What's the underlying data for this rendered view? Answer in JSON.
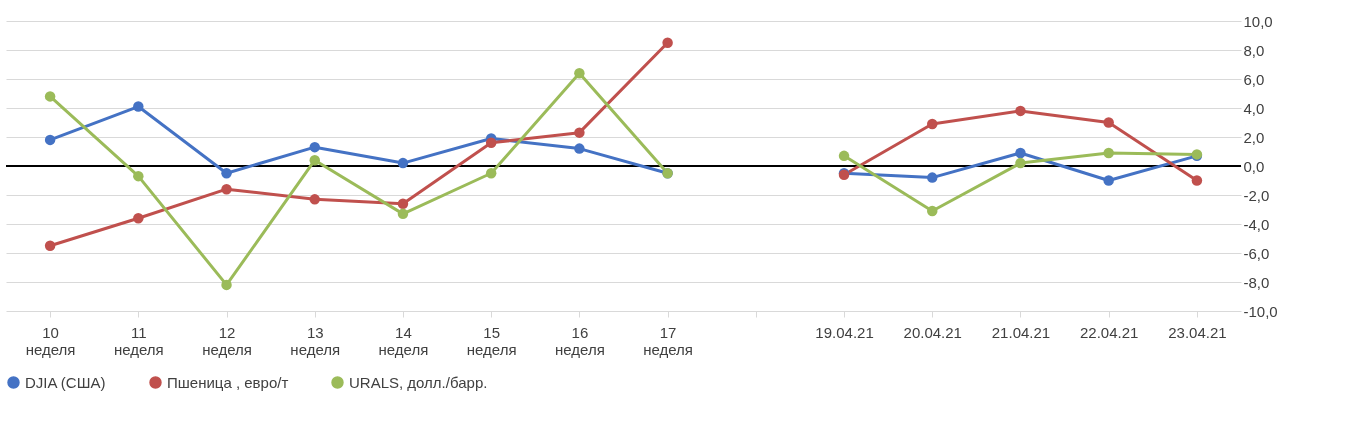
{
  "chart_data": {
    "type": "line",
    "categories": [
      "10 неделя",
      "11 неделя",
      "12 неделя",
      "13 неделя",
      "14 неделя",
      "15 неделя",
      "16 неделя",
      "17 неделя",
      null,
      "19.04.21",
      "20.04.21",
      "21.04.21",
      "22.04.21",
      "23.04.21"
    ],
    "series": [
      {
        "name": "DJIA (США)",
        "color": "#4472c4",
        "values": [
          1.8,
          4.1,
          -0.5,
          1.3,
          0.2,
          1.9,
          1.2,
          -0.5,
          null,
          -0.5,
          -0.8,
          0.9,
          -1.0,
          0.7
        ]
      },
      {
        "name": "Пшеница , евро/т",
        "color": "#c0504d",
        "values": [
          -5.5,
          -3.6,
          -1.6,
          -2.3,
          -2.6,
          1.6,
          2.3,
          8.5,
          null,
          -0.6,
          2.9,
          3.8,
          3.0,
          -1.0
        ]
      },
      {
        "name": "URALS, долл./барр.",
        "color": "#9bbb59",
        "values": [
          4.8,
          -0.7,
          -8.2,
          0.4,
          -3.3,
          -0.5,
          6.4,
          -0.5,
          null,
          0.7,
          -3.1,
          0.2,
          0.9,
          0.8
        ]
      }
    ],
    "ylim": [
      -10,
      10
    ],
    "yticks": [
      {
        "value": -10,
        "label": "-10,0"
      },
      {
        "value": -8,
        "label": "-8,0"
      },
      {
        "value": -6,
        "label": "-6,0"
      },
      {
        "value": -4,
        "label": "-4,0"
      },
      {
        "value": -2,
        "label": "-2,0"
      },
      {
        "value": 0,
        "label": "0,0"
      },
      {
        "value": 2,
        "label": "2,0"
      },
      {
        "value": 4,
        "label": "4,0"
      },
      {
        "value": 6,
        "label": "6,0"
      },
      {
        "value": 8,
        "label": "8,0"
      },
      {
        "value": 10,
        "label": "10,0"
      }
    ],
    "ref_lines": [
      {
        "axis": "y",
        "value": 0,
        "color": "#000000"
      }
    ],
    "grid": "y",
    "legend": "bottom",
    "marker": "circle",
    "line_style": "solid"
  }
}
